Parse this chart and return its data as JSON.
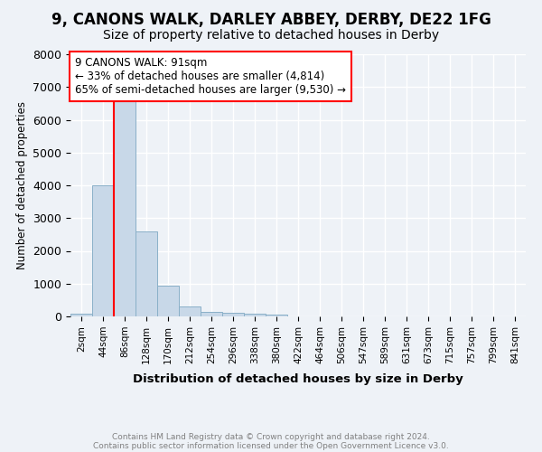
{
  "title": "9, CANONS WALK, DARLEY ABBEY, DERBY, DE22 1FG",
  "subtitle": "Size of property relative to detached houses in Derby",
  "xlabel": "Distribution of detached houses by size in Derby",
  "ylabel": "Number of detached properties",
  "bar_color": "#c8d8e8",
  "bar_edge_color": "#7aaan0",
  "bin_labels": [
    "2sqm",
    "44sqm",
    "86sqm",
    "128sqm",
    "170sqm",
    "212sqm",
    "254sqm",
    "296sqm",
    "338sqm",
    "380sqm",
    "422sqm",
    "464sqm",
    "506sqm",
    "547sqm",
    "589sqm",
    "631sqm",
    "673sqm",
    "715sqm",
    "757sqm",
    "799sqm",
    "841sqm"
  ],
  "bar_values": [
    80,
    4000,
    6600,
    2600,
    950,
    300,
    130,
    100,
    80,
    60,
    0,
    0,
    0,
    0,
    0,
    0,
    0,
    0,
    0,
    0,
    0
  ],
  "red_line_x": 1.5,
  "annotation_text": "9 CANONS WALK: 91sqm\n← 33% of detached houses are smaller (4,814)\n65% of semi-detached houses are larger (9,530) →",
  "annotation_box_color": "white",
  "annotation_box_edge_color": "red",
  "ylim": [
    0,
    8000
  ],
  "footnote1": "Contains HM Land Registry data © Crown copyright and database right 2024.",
  "footnote2": "Contains public sector information licensed under the Open Government Licence v3.0.",
  "background_color": "#eef2f7",
  "grid_color": "white",
  "title_fontsize": 12,
  "subtitle_fontsize": 10
}
